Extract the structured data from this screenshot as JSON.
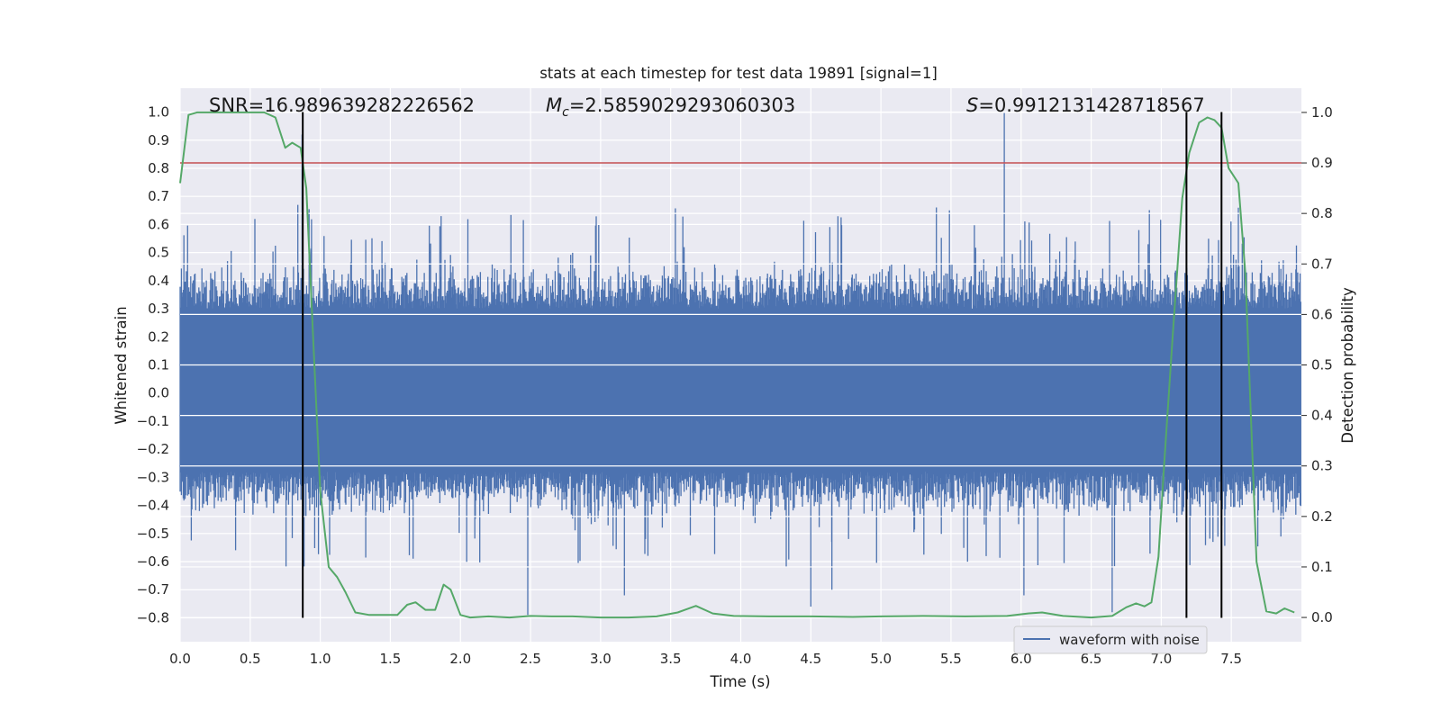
{
  "chart_data": {
    "type": "line",
    "title": "stats at each timestep for test data 19891 [signal=1]",
    "xlabel": "Time (s)",
    "ylabel": "Whitened strain",
    "ylabel_right": "Detection probability",
    "xlim": [
      0.0,
      8.0
    ],
    "ylim": [
      -0.885,
      1.085
    ],
    "ylim_right": [
      -0.048,
      1.048
    ],
    "xticks": [
      "0.0",
      "0.5",
      "1.0",
      "1.5",
      "2.0",
      "2.5",
      "3.0",
      "3.5",
      "4.0",
      "4.5",
      "5.0",
      "5.5",
      "6.0",
      "6.5",
      "7.0",
      "7.5"
    ],
    "yticks_left": [
      "1.0",
      "0.9",
      "0.8",
      "0.7",
      "0.6",
      "0.5",
      "0.4",
      "0.3",
      "0.2",
      "0.1",
      "0.0",
      "−0.1",
      "−0.2",
      "−0.3",
      "−0.4",
      "−0.5",
      "−0.6",
      "−0.7",
      "−0.8"
    ],
    "yticks_right": [
      "1.0",
      "0.9",
      "0.8",
      "0.7",
      "0.6",
      "0.5",
      "0.4",
      "0.3",
      "0.2",
      "0.1",
      "0.0"
    ],
    "annotations": {
      "snr": "SNR=16.989639282226562",
      "mc_symbol": "M",
      "mc_sub": "c",
      "mc_value": "=2.5859029293060303",
      "s_symbol": "S",
      "s_value": "=0.9912131428718567"
    },
    "threshold_right": 0.9,
    "vlines_x": [
      0.875,
      7.18,
      7.43
    ],
    "vline_range": [
      -0.8,
      1.0
    ],
    "legend": {
      "label": "waveform with noise",
      "position": "lower-right"
    },
    "series": [
      {
        "name": "waveform with noise",
        "axis": "left",
        "color": "#4c72b0",
        "envelope_typical": [
          -0.42,
          0.45
        ],
        "notable_peaks": [
          {
            "x": 5.88,
            "y": 1.0
          },
          {
            "x": 0.87,
            "y": 0.92
          },
          {
            "x": 7.55,
            "y": 0.66
          },
          {
            "x": 2.48,
            "y": -0.79
          },
          {
            "x": 6.65,
            "y": -0.78
          },
          {
            "x": 4.5,
            "y": -0.76
          },
          {
            "x": 3.17,
            "y": -0.72
          },
          {
            "x": 6.02,
            "y": -0.72
          },
          {
            "x": 4.65,
            "y": -0.7
          }
        ]
      },
      {
        "name": "detection probability",
        "axis": "right",
        "color": "#55a868",
        "x": [
          0.0,
          0.06,
          0.12,
          0.2,
          0.3,
          0.4,
          0.5,
          0.6,
          0.68,
          0.75,
          0.8,
          0.86,
          0.9,
          0.95,
          1.0,
          1.06,
          1.12,
          1.18,
          1.25,
          1.35,
          1.45,
          1.55,
          1.62,
          1.68,
          1.75,
          1.82,
          1.88,
          1.93,
          2.0,
          2.07,
          2.2,
          2.35,
          2.5,
          2.65,
          2.8,
          3.0,
          3.2,
          3.4,
          3.55,
          3.68,
          3.8,
          3.95,
          4.2,
          4.5,
          4.8,
          5.0,
          5.3,
          5.6,
          5.9,
          6.05,
          6.15,
          6.3,
          6.5,
          6.65,
          6.75,
          6.82,
          6.88,
          6.93,
          6.98,
          7.02,
          7.08,
          7.15,
          7.2,
          7.27,
          7.33,
          7.38,
          7.43,
          7.48,
          7.55,
          7.6,
          7.68,
          7.75,
          7.82,
          7.88,
          7.95
        ],
        "values": [
          0.86,
          0.995,
          1.0,
          1.0,
          1.0,
          1.0,
          1.0,
          1.0,
          0.99,
          0.93,
          0.94,
          0.93,
          0.85,
          0.55,
          0.25,
          0.1,
          0.08,
          0.05,
          0.01,
          0.005,
          0.005,
          0.005,
          0.025,
          0.03,
          0.015,
          0.015,
          0.065,
          0.055,
          0.005,
          0.0,
          0.002,
          0.0,
          0.003,
          0.002,
          0.002,
          0.0,
          0.0,
          0.002,
          0.01,
          0.023,
          0.008,
          0.003,
          0.002,
          0.002,
          0.001,
          0.002,
          0.003,
          0.002,
          0.003,
          0.008,
          0.01,
          0.003,
          0.0,
          0.003,
          0.02,
          0.028,
          0.022,
          0.03,
          0.12,
          0.3,
          0.55,
          0.83,
          0.92,
          0.98,
          0.99,
          0.985,
          0.97,
          0.89,
          0.86,
          0.68,
          0.11,
          0.012,
          0.008,
          0.018,
          0.01
        ]
      }
    ]
  }
}
